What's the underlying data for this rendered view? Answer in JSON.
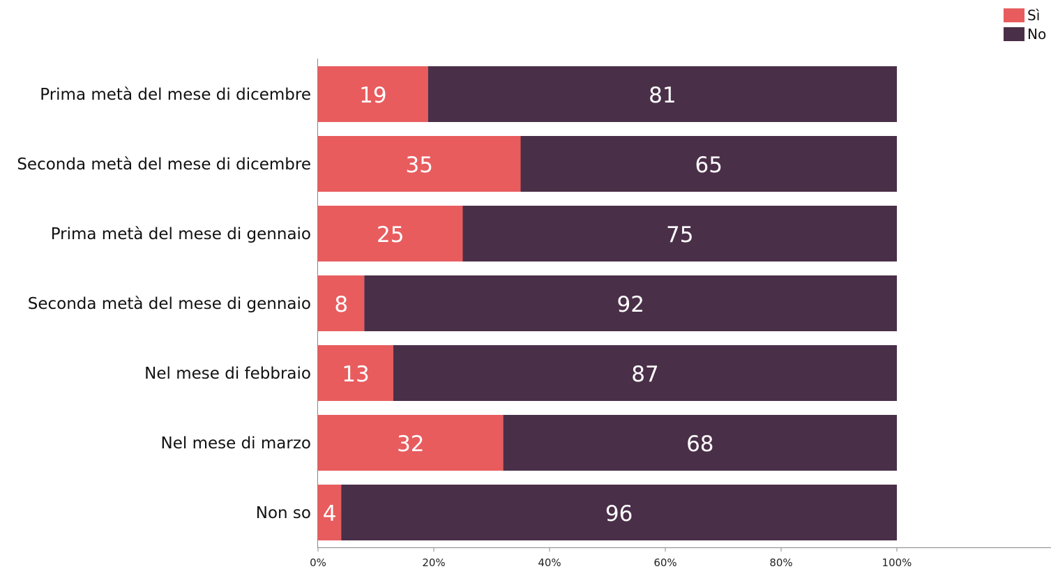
{
  "chart_data": {
    "type": "bar",
    "orientation": "horizontal",
    "stacked": true,
    "categories": [
      "Prima metà del mese di dicembre",
      "Seconda metà del mese di dicembre",
      "Prima metà del mese di gennaio",
      "Seconda metà del mese di gennaio",
      "Nel mese di febbraio",
      "Nel mese di marzo",
      "Non so"
    ],
    "series": [
      {
        "name": "Sì",
        "color": "#e85c5e",
        "values": [
          19,
          35,
          25,
          8,
          13,
          32,
          4
        ]
      },
      {
        "name": "No",
        "color": "#4a2f48",
        "values": [
          81,
          65,
          75,
          92,
          87,
          68,
          96
        ]
      }
    ],
    "xlim": [
      0,
      100
    ],
    "xticks": [
      "0%",
      "20%",
      "40%",
      "60%",
      "80%",
      "100%"
    ],
    "grid": false,
    "legend_position": "top-right",
    "title": "",
    "xlabel": "",
    "ylabel": ""
  }
}
